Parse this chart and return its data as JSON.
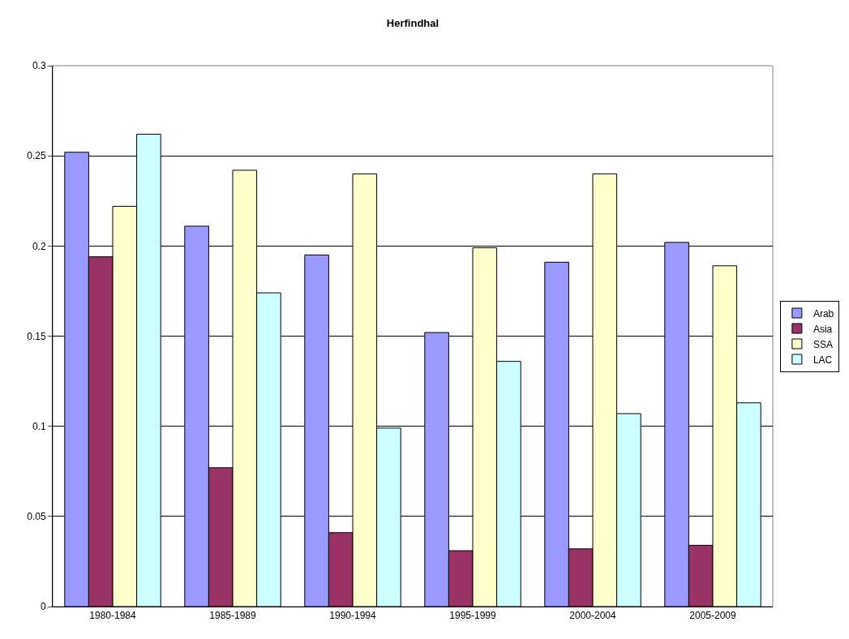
{
  "chart_data": {
    "type": "bar",
    "title": "Herfindhal",
    "categories": [
      "1980-1984",
      "1985-1989",
      "1990-1994",
      "1995-1999",
      "2000-2004",
      "2005-2009"
    ],
    "series": [
      {
        "name": "Arab",
        "color": "#9999ff",
        "values": [
          0.252,
          0.211,
          0.195,
          0.152,
          0.191,
          0.202
        ]
      },
      {
        "name": "Asia",
        "color": "#993366",
        "values": [
          0.194,
          0.077,
          0.041,
          0.031,
          0.032,
          0.034
        ]
      },
      {
        "name": "SSA",
        "color": "#ffffcc",
        "values": [
          0.222,
          0.242,
          0.24,
          0.199,
          0.24,
          0.189
        ]
      },
      {
        "name": "LAC",
        "color": "#ccffff",
        "values": [
          0.262,
          0.174,
          0.099,
          0.136,
          0.107,
          0.113
        ]
      }
    ],
    "ylim": [
      0,
      0.3
    ],
    "yticks": [
      0,
      0.05,
      0.1,
      0.15,
      0.2,
      0.25,
      0.3
    ],
    "grid": "y",
    "legend": "right"
  }
}
